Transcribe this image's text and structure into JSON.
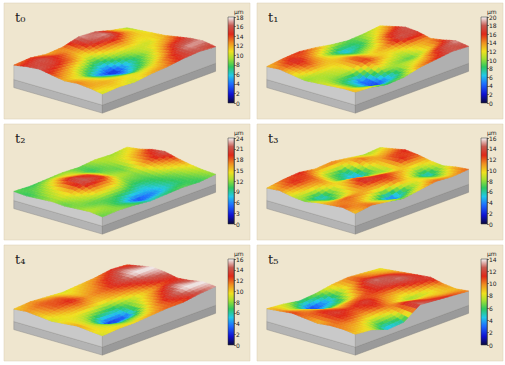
{
  "chart_data": [
    {
      "type": "surface",
      "title": "t₀",
      "zlabel": "μm",
      "zlim": [
        0,
        18
      ],
      "zticks": [
        0,
        2,
        4,
        6,
        8,
        10,
        12,
        14,
        16,
        18
      ],
      "z": [
        [
          9,
          10,
          11,
          12,
          14,
          16,
          17,
          15
        ],
        [
          12,
          13,
          11,
          10,
          12,
          15,
          17,
          16
        ],
        [
          16,
          17,
          13,
          10,
          9,
          11,
          14,
          15
        ],
        [
          17,
          16,
          12,
          9,
          6,
          8,
          11,
          13
        ],
        [
          13,
          12,
          10,
          6,
          2,
          5,
          10,
          12
        ],
        [
          12,
          14,
          13,
          9,
          5,
          8,
          11,
          10
        ],
        [
          14,
          16,
          15,
          12,
          10,
          11,
          12,
          11
        ],
        [
          13,
          15,
          16,
          14,
          12,
          13,
          12,
          10
        ]
      ]
    },
    {
      "type": "surface",
      "title": "t₁",
      "zlabel": "μm",
      "zlim": [
        0,
        20
      ],
      "zticks": [
        0,
        2,
        4,
        6,
        8,
        10,
        12,
        14,
        16,
        18,
        20
      ],
      "z": [
        [
          12,
          15,
          18,
          17,
          14,
          16,
          19,
          17
        ],
        [
          10,
          12,
          16,
          18,
          13,
          12,
          17,
          18
        ],
        [
          9,
          8,
          11,
          14,
          11,
          9,
          13,
          16
        ],
        [
          11,
          6,
          9,
          12,
          13,
          10,
          11,
          14
        ],
        [
          14,
          10,
          12,
          15,
          16,
          12,
          6,
          10
        ],
        [
          16,
          14,
          13,
          12,
          11,
          4,
          3,
          9
        ],
        [
          15,
          17,
          15,
          11,
          10,
          8,
          8,
          12
        ],
        [
          13,
          14,
          12,
          10,
          11,
          12,
          13,
          13
        ]
      ]
    },
    {
      "type": "surface",
      "title": "t₂",
      "zlabel": "μm",
      "zlim": [
        0,
        24
      ],
      "zticks": [
        0,
        3,
        6,
        9,
        12,
        15,
        18,
        21,
        24
      ],
      "z": [
        [
          14,
          16,
          20,
          22,
          18,
          15,
          13,
          12
        ],
        [
          12,
          14,
          16,
          18,
          15,
          12,
          11,
          10
        ],
        [
          13,
          12,
          11,
          12,
          11,
          10,
          9,
          11
        ],
        [
          11,
          10,
          12,
          13,
          11,
          8,
          6,
          10
        ],
        [
          12,
          14,
          18,
          20,
          15,
          10,
          4,
          9
        ],
        [
          11,
          16,
          21,
          22,
          16,
          11,
          9,
          11
        ],
        [
          10,
          12,
          14,
          15,
          13,
          11,
          12,
          12
        ],
        [
          11,
          10,
          11,
          12,
          11,
          12,
          13,
          11
        ]
      ]
    },
    {
      "type": "surface",
      "title": "t₃",
      "zlabel": "μm",
      "zlim": [
        0,
        16
      ],
      "zticks": [
        0,
        2,
        4,
        6,
        8,
        10,
        12,
        14,
        16
      ],
      "z": [
        [
          9,
          11,
          13,
          12,
          10,
          9,
          11,
          12
        ],
        [
          8,
          10,
          12,
          13,
          9,
          5,
          8,
          11
        ],
        [
          10,
          12,
          9,
          8,
          11,
          9,
          10,
          12
        ],
        [
          12,
          6,
          4,
          9,
          13,
          12,
          7,
          10
        ],
        [
          11,
          8,
          7,
          12,
          14,
          10,
          3,
          8
        ],
        [
          13,
          12,
          11,
          9,
          10,
          11,
          8,
          10
        ],
        [
          12,
          13,
          10,
          5,
          7,
          12,
          11,
          12
        ],
        [
          10,
          11,
          9,
          8,
          10,
          11,
          12,
          10
        ]
      ]
    },
    {
      "type": "surface",
      "title": "t₄",
      "zlabel": "μm",
      "zlim": [
        0,
        16
      ],
      "zticks": [
        0,
        2,
        4,
        6,
        8,
        10,
        12,
        14,
        16
      ],
      "z": [
        [
          12,
          14,
          16,
          15,
          13,
          14,
          16,
          15
        ],
        [
          13,
          15,
          16,
          14,
          12,
          15,
          16,
          14
        ],
        [
          11,
          13,
          14,
          12,
          10,
          12,
          14,
          12
        ],
        [
          10,
          11,
          12,
          11,
          8,
          9,
          11,
          12
        ],
        [
          9,
          10,
          11,
          10,
          6,
          3,
          8,
          11
        ],
        [
          10,
          12,
          13,
          11,
          7,
          2,
          7,
          10
        ],
        [
          11,
          12,
          12,
          10,
          9,
          8,
          9,
          10
        ],
        [
          10,
          11,
          10,
          9,
          10,
          11,
          10,
          9
        ]
      ]
    },
    {
      "type": "surface",
      "title": "t₅",
      "zlabel": "μm",
      "zlim": [
        0,
        14
      ],
      "zticks": [
        0,
        2,
        4,
        6,
        8,
        10,
        12,
        14
      ],
      "z": [
        [
          8,
          9,
          10,
          11,
          12,
          10,
          9,
          10
        ],
        [
          9,
          10,
          12,
          13,
          11,
          8,
          9,
          11
        ],
        [
          10,
          11,
          13,
          12,
          9,
          7,
          10,
          12
        ],
        [
          9,
          8,
          10,
          11,
          10,
          9,
          12,
          13
        ],
        [
          7,
          4,
          6,
          10,
          12,
          11,
          8,
          5
        ],
        [
          6,
          2,
          5,
          9,
          11,
          10,
          7,
          4
        ],
        [
          8,
          7,
          9,
          11,
          12,
          11,
          9,
          8
        ],
        [
          9,
          10,
          11,
          10,
          9,
          10,
          10,
          9
        ]
      ]
    }
  ]
}
